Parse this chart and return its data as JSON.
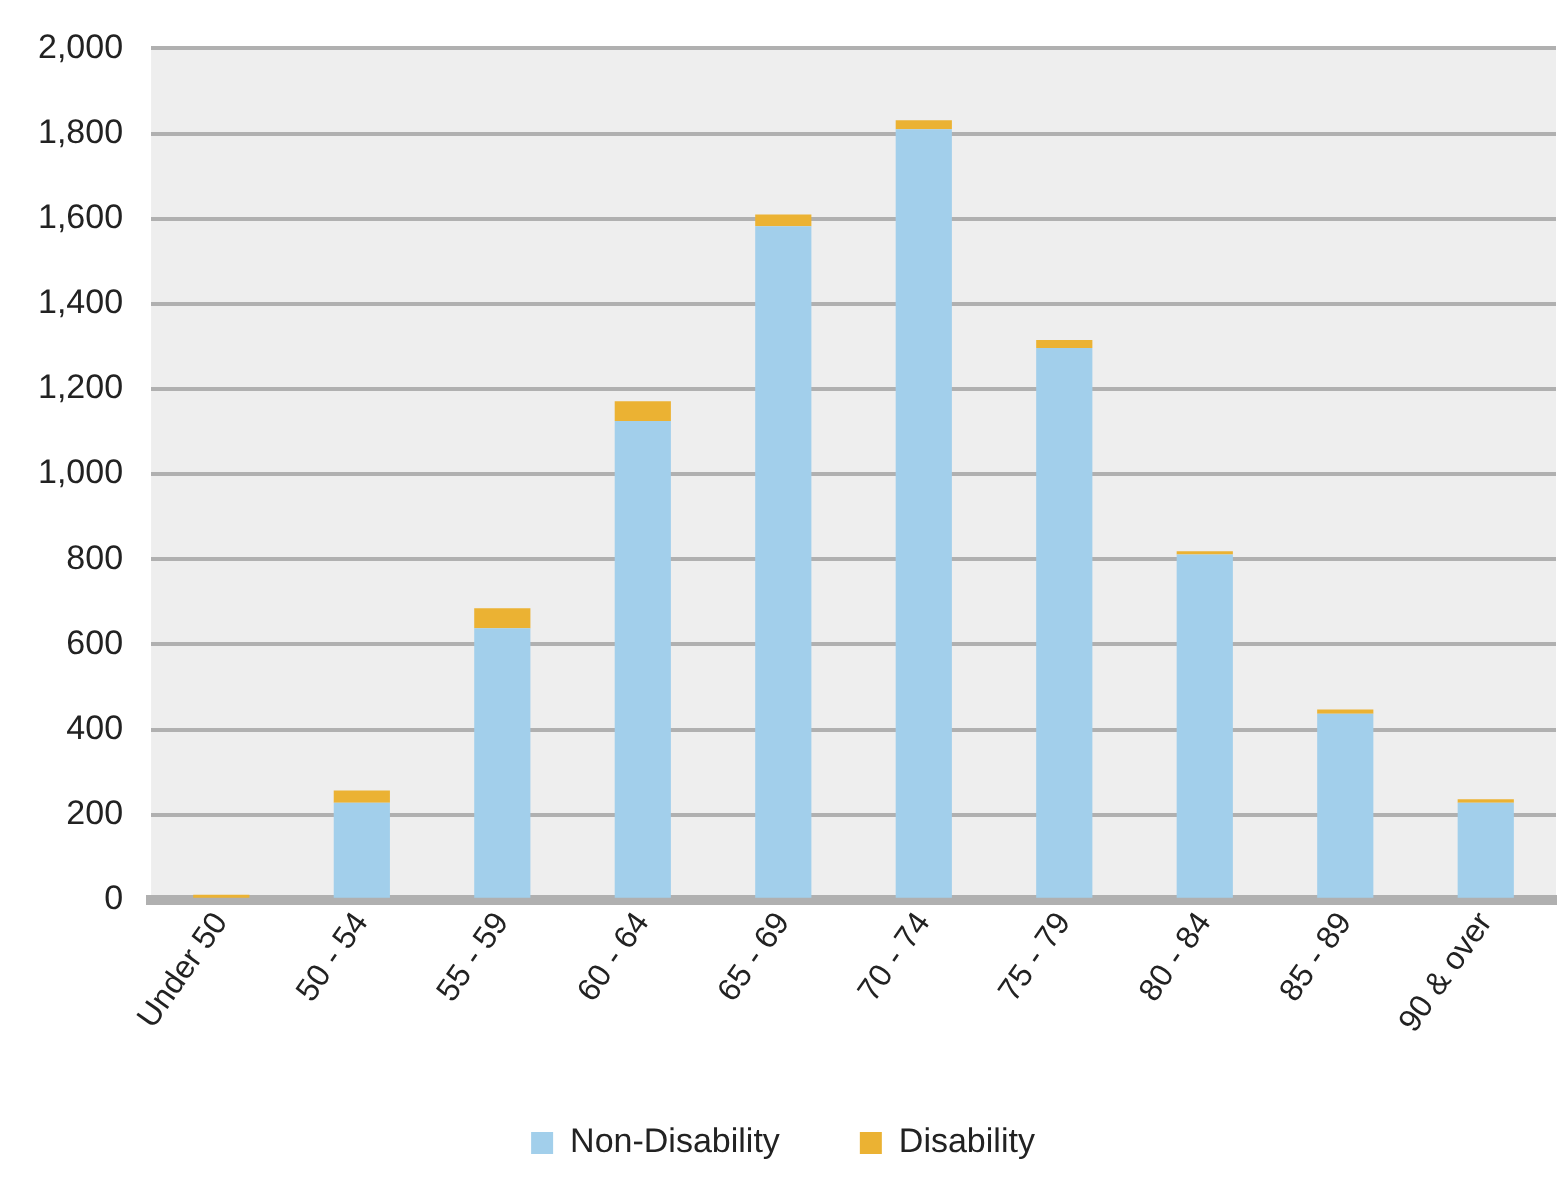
{
  "chart_data": {
    "type": "bar",
    "stacked": true,
    "categories": [
      "Under 50",
      "50 - 54",
      "55 - 59",
      "60 - 64",
      "65 - 69",
      "70 - 74",
      "75 - 79",
      "80 - 84",
      "85 - 89",
      "90 & over"
    ],
    "series": [
      {
        "name": "Non-Disability",
        "color": "#a2cfeb",
        "values": [
          null,
          228,
          638,
          1125,
          1582,
          1810,
          1296,
          811,
          437,
          228
        ]
      },
      {
        "name": "Disability",
        "color": "#ebb233",
        "values": [
          12,
          29,
          47,
          46,
          28,
          21,
          19,
          8,
          10,
          8
        ]
      }
    ],
    "ylim": [
      0,
      2000
    ],
    "yticks": [
      {
        "value": 0,
        "label": "0"
      },
      {
        "value": 200,
        "label": "200"
      },
      {
        "value": 400,
        "label": "400"
      },
      {
        "value": 600,
        "label": "600"
      },
      {
        "value": 800,
        "label": "800"
      },
      {
        "value": 1000,
        "label": "1,000"
      },
      {
        "value": 1200,
        "label": "1,200"
      },
      {
        "value": 1400,
        "label": "1,400"
      },
      {
        "value": 1600,
        "label": "1,600"
      },
      {
        "value": 1800,
        "label": "1,800"
      },
      {
        "value": 2000,
        "label": "2,000"
      }
    ],
    "grid": "y",
    "legend": "bottom"
  }
}
